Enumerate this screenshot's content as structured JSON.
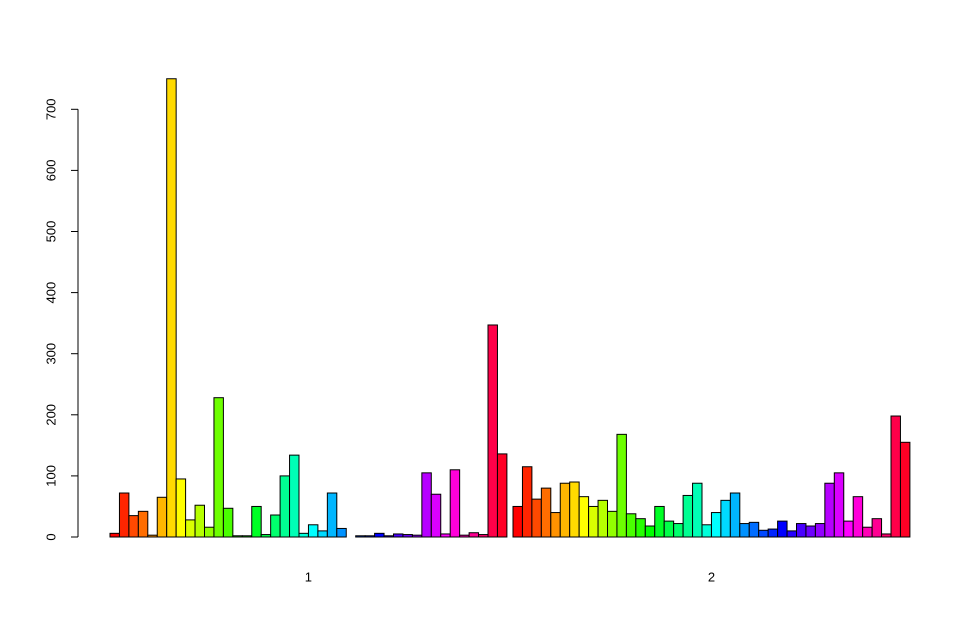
{
  "chart_data": {
    "type": "bar",
    "categories": [
      "1",
      "2"
    ],
    "ylim": [
      0,
      760
    ],
    "yticks": [
      0,
      100,
      200,
      300,
      400,
      500,
      600,
      700
    ],
    "grid": false,
    "legend": "none",
    "groups": [
      {
        "label": "1",
        "values": [
          6,
          72,
          35,
          42,
          3,
          65,
          750,
          95,
          28,
          52,
          16,
          228,
          47,
          2,
          2,
          50,
          4,
          36,
          100,
          134,
          6,
          20,
          10,
          72,
          14,
          0,
          2,
          2,
          6,
          2,
          5,
          4,
          3,
          105,
          70,
          5,
          110,
          3,
          7,
          4,
          347,
          136
        ]
      },
      {
        "label": "2",
        "values": [
          50,
          115,
          62,
          80,
          40,
          88,
          90,
          66,
          50,
          60,
          42,
          168,
          38,
          30,
          18,
          50,
          26,
          22,
          68,
          88,
          20,
          40,
          60,
          72,
          22,
          24,
          11,
          13,
          26,
          10,
          22,
          18,
          22,
          88,
          105,
          26,
          66,
          16,
          30,
          5,
          198,
          155
        ]
      }
    ]
  }
}
